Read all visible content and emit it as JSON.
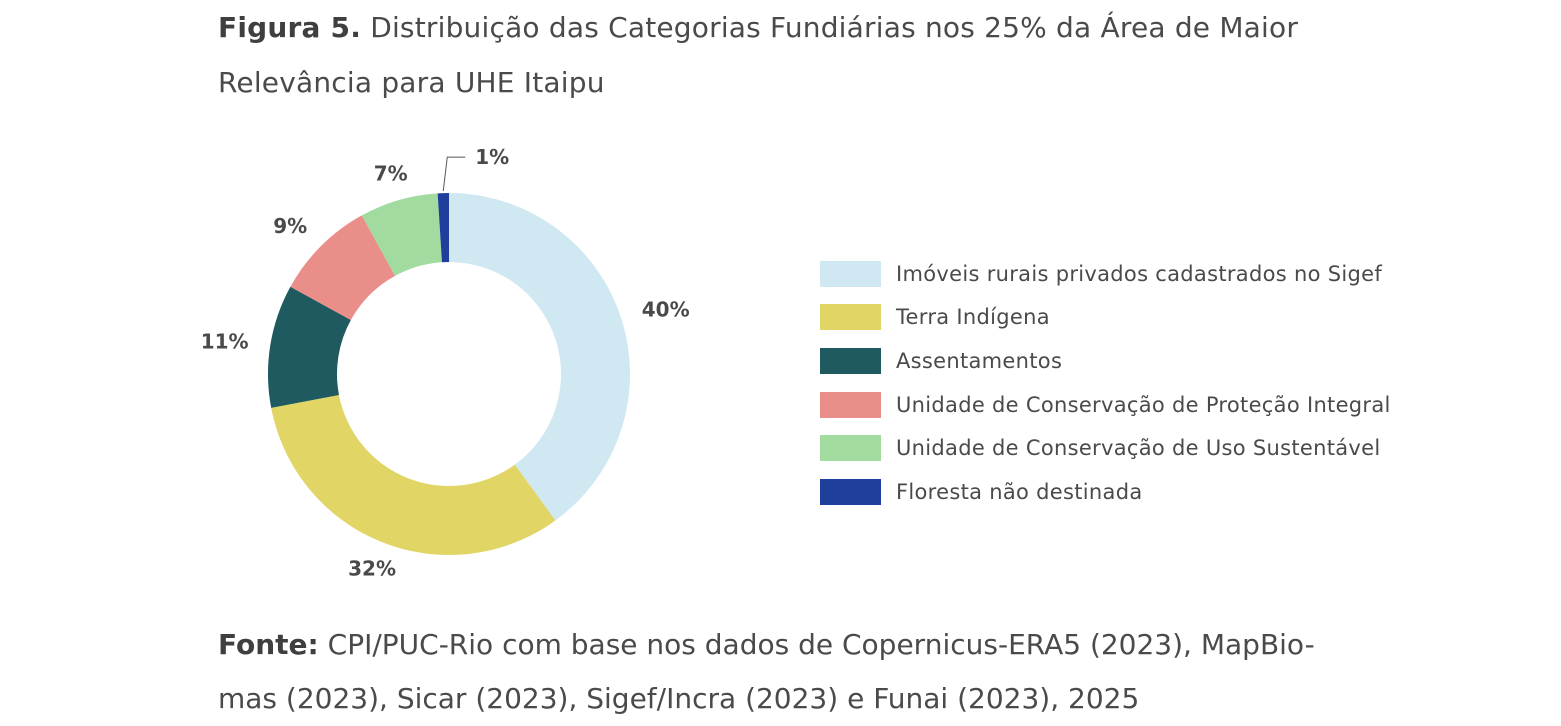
{
  "figure": {
    "label": "Figura 5.",
    "title_line1": "Distribuição das Categorias Fundiárias nos 25% da Área de Maior",
    "title_line2": "Relevância para UHE Itaipu"
  },
  "chart_data": {
    "type": "pie",
    "donut": true,
    "categories": [
      "Imóveis rurais privados cadastrados no Sigef",
      "Terra Indígena",
      "Assentamentos",
      "Unidade de Conservação de Proteção Integral",
      "Unidade de Conservação de Uso Sustentável",
      "Floresta não destinada"
    ],
    "values": [
      40,
      32,
      11,
      9,
      7,
      1
    ],
    "value_labels": [
      "40%",
      "32%",
      "11%",
      "9%",
      "7%",
      "1%"
    ],
    "colors": [
      "#cfe8f1",
      "#e0d565",
      "#1e5a5f",
      "#e98e89",
      "#a1dba0",
      "#1f3f9c"
    ],
    "legend_position": "right"
  },
  "source": {
    "label": "Fonte:",
    "line1": "CPI/PUC-Rio com base nos dados de Copernicus-ERA5 (2023), MapBio-",
    "line2": "mas (2023), Sicar (2023), Sigef/Incra (2023) e Funai (2023), 2025"
  }
}
